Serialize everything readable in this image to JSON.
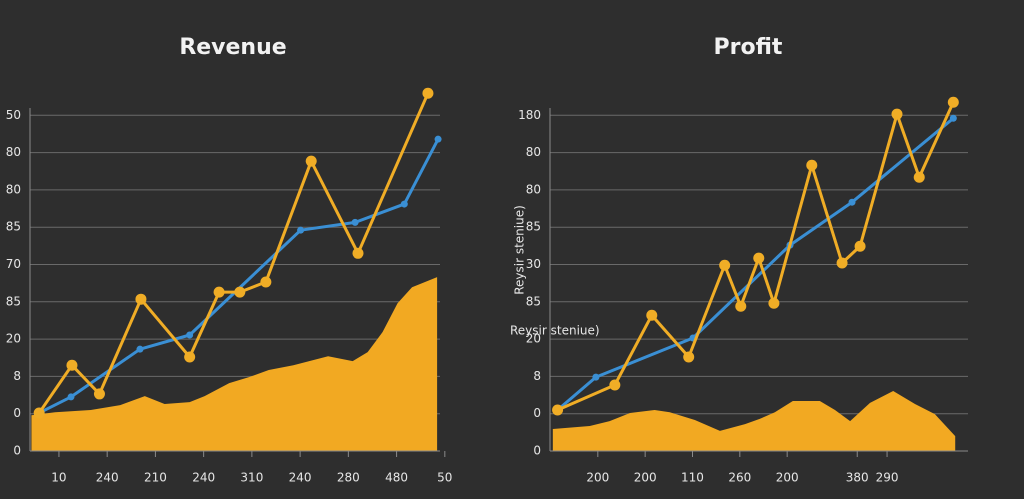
{
  "chart_data": [
    {
      "type": "line",
      "title": "Revenue",
      "xlim": [
        -0.6,
        7.9
      ],
      "ylim": [
        0,
        10
      ],
      "xticks": [
        {
          "value": 0,
          "label": "10"
        },
        {
          "value": 1,
          "label": "240"
        },
        {
          "value": 2,
          "label": "210"
        },
        {
          "value": 3,
          "label": "240"
        },
        {
          "value": 4,
          "label": "310"
        },
        {
          "value": 5,
          "label": "240"
        },
        {
          "value": 6,
          "label": "280"
        },
        {
          "value": 7,
          "label": "480"
        },
        {
          "value": 8,
          "label": "50"
        }
      ],
      "yticks": [
        {
          "value": 0,
          "label": "0"
        },
        {
          "value": 1,
          "label": "0"
        },
        {
          "value": 2,
          "label": "8"
        },
        {
          "value": 3,
          "label": "20"
        },
        {
          "value": 4,
          "label": "85"
        },
        {
          "value": 5,
          "label": "70"
        },
        {
          "value": 6,
          "label": "85"
        },
        {
          "value": 7,
          "label": "80"
        },
        {
          "value": 8,
          "label": "80"
        },
        {
          "value": 9,
          "label": "50"
        }
      ],
      "grid": true,
      "series": [
        {
          "style": "area",
          "color": "#f2a922",
          "x": [
            -0.57,
            -0.08,
            0.66,
            1.27,
            1.78,
            2.19,
            2.71,
            3.02,
            3.53,
            3.94,
            4.35,
            4.86,
            5.58,
            6.09,
            6.4,
            6.71,
            7.02,
            7.32,
            7.84
          ],
          "values": [
            0.96,
            1.04,
            1.1,
            1.23,
            1.47,
            1.26,
            1.31,
            1.47,
            1.82,
            1.98,
            2.17,
            2.3,
            2.54,
            2.41,
            2.65,
            3.19,
            3.96,
            4.39,
            4.66
          ]
        },
        {
          "style": "line",
          "color": "#3a8fd4",
          "marker": 3.5,
          "x": [
            -0.41,
            0.25,
            1.68,
            2.71,
            5.01,
            6.14,
            7.16,
            7.86
          ],
          "values": [
            1.02,
            1.45,
            2.73,
            3.11,
            5.92,
            6.13,
            6.62,
            8.36
          ]
        },
        {
          "style": "line",
          "color": "#f0ad26",
          "marker": 5.5,
          "x": [
            -0.41,
            0.27,
            0.84,
            1.7,
            2.71,
            3.32,
            3.75,
            4.29,
            5.23,
            6.2,
            7.65
          ],
          "values": [
            1.02,
            2.3,
            1.53,
            4.07,
            2.52,
            4.26,
            4.26,
            4.53,
            7.77,
            5.3,
            9.59
          ]
        }
      ]
    },
    {
      "type": "line",
      "title": "Profit",
      "y_label": "Reysir steniue)",
      "annotation": "Reysir steniue)",
      "xlim": [
        -1.01,
        7.82
      ],
      "ylim": [
        0,
        10
      ],
      "xticks": [
        {
          "value": 0,
          "label": "200"
        },
        {
          "value": 1,
          "label": "200"
        },
        {
          "value": 2,
          "label": "110"
        },
        {
          "value": 3,
          "label": "260"
        },
        {
          "value": 4,
          "label": "200"
        },
        {
          "value": 5.48,
          "label": "380"
        },
        {
          "value": 6.11,
          "label": "290"
        }
      ],
      "yticks": [
        {
          "value": 0,
          "label": "0"
        },
        {
          "value": 1,
          "label": "0"
        },
        {
          "value": 2,
          "label": "8"
        },
        {
          "value": 3,
          "label": "20"
        },
        {
          "value": 4,
          "label": "85"
        },
        {
          "value": 5,
          "label": "30"
        },
        {
          "value": 6,
          "label": "85"
        },
        {
          "value": 7,
          "label": "80"
        },
        {
          "value": 8,
          "label": "80"
        },
        {
          "value": 9,
          "label": "180"
        }
      ],
      "grid": true,
      "series": [
        {
          "style": "area",
          "color": "#f2a922",
          "x": [
            -0.95,
            -0.17,
            0.25,
            0.68,
            1.2,
            1.52,
            2.05,
            2.58,
            3.11,
            3.42,
            3.74,
            4.12,
            4.69,
            5.01,
            5.33,
            5.75,
            6.24,
            6.7,
            7.12,
            7.55
          ],
          "values": [
            0.59,
            0.67,
            0.8,
            1.02,
            1.1,
            1.04,
            0.83,
            0.54,
            0.72,
            0.86,
            1.04,
            1.34,
            1.34,
            1.1,
            0.8,
            1.29,
            1.61,
            1.26,
            0.99,
            0.4
          ]
        },
        {
          "style": "line",
          "color": "#3a8fd4",
          "marker": 3.5,
          "x": [
            -0.85,
            -0.04,
            2.01,
            4.06,
            5.37,
            7.51
          ],
          "values": [
            1.1,
            1.98,
            3.03,
            5.52,
            6.67,
            8.92
          ]
        },
        {
          "style": "line",
          "color": "#f0ad26",
          "marker": 5.5,
          "x": [
            -0.85,
            0.36,
            1.14,
            1.92,
            2.68,
            3.02,
            3.4,
            3.72,
            4.52,
            5.16,
            5.54,
            6.32,
            6.79,
            7.51
          ],
          "values": [
            1.1,
            1.77,
            3.64,
            2.52,
            4.98,
            3.88,
            5.17,
            3.96,
            7.66,
            5.04,
            5.49,
            9.03,
            7.34,
            9.35
          ]
        }
      ]
    }
  ]
}
